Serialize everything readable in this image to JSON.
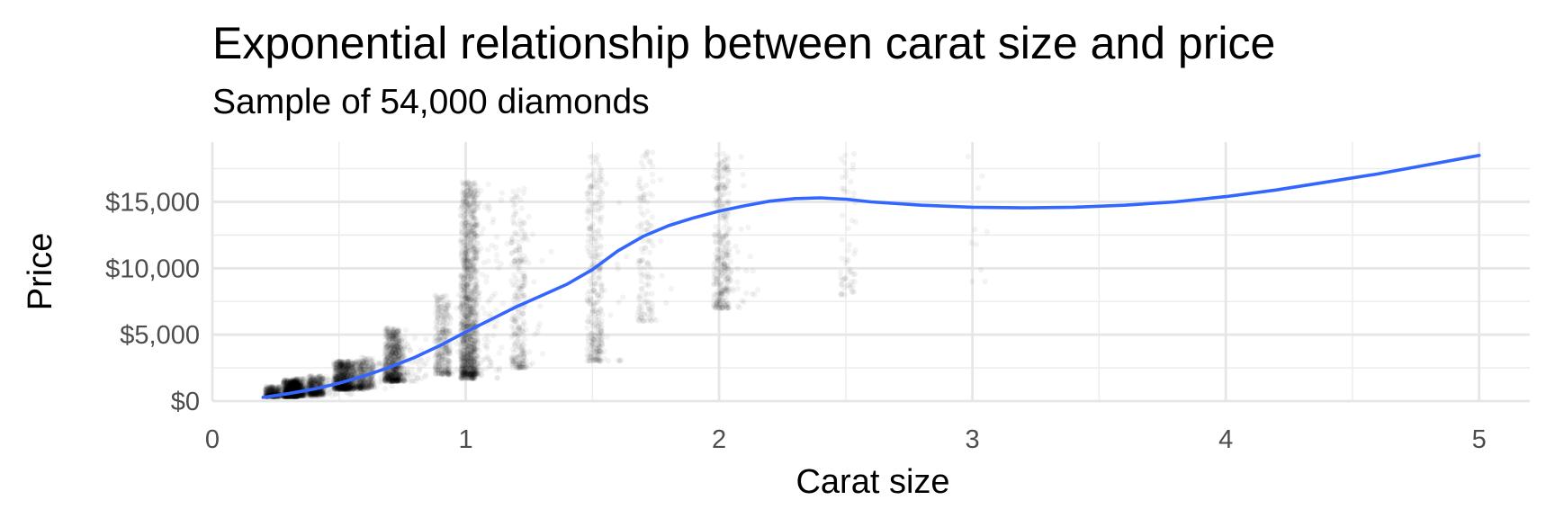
{
  "chart_data": {
    "type": "scatter",
    "title": "Exponential relationship between carat size and price",
    "subtitle": "Sample of 54,000 diamonds",
    "xlabel": "Carat size",
    "ylabel": "Price",
    "xlim": [
      0,
      5.2
    ],
    "ylim": [
      0,
      19500
    ],
    "x_ticks": [
      0,
      1,
      2,
      3,
      4,
      5
    ],
    "x_tick_labels": [
      "0",
      "1",
      "2",
      "3",
      "4",
      "5"
    ],
    "y_ticks": [
      0,
      5000,
      10000,
      15000
    ],
    "y_tick_labels": [
      "$0",
      "$5,000",
      "$10,000",
      "$15,000"
    ],
    "grid": true,
    "point_color": "#000000",
    "point_alpha": 0.03,
    "point_count": 54000,
    "clusters": [
      {
        "carat": 0.23,
        "min": 330,
        "max": 1100,
        "weight": 1.8
      },
      {
        "carat": 0.3,
        "min": 350,
        "max": 1600,
        "weight": 3.2
      },
      {
        "carat": 0.31,
        "min": 350,
        "max": 1500,
        "weight": 2.5
      },
      {
        "carat": 0.33,
        "min": 400,
        "max": 1700,
        "weight": 1.6
      },
      {
        "carat": 0.4,
        "min": 500,
        "max": 1900,
        "weight": 2.2
      },
      {
        "carat": 0.5,
        "min": 900,
        "max": 3000,
        "weight": 2.8
      },
      {
        "carat": 0.52,
        "min": 900,
        "max": 3000,
        "weight": 1.5
      },
      {
        "carat": 0.56,
        "min": 900,
        "max": 3100,
        "weight": 1.2
      },
      {
        "carat": 0.6,
        "min": 1000,
        "max": 3300,
        "weight": 1.1
      },
      {
        "carat": 0.7,
        "min": 1500,
        "max": 5500,
        "weight": 2.8
      },
      {
        "carat": 0.72,
        "min": 1500,
        "max": 5000,
        "weight": 1.3
      },
      {
        "carat": 0.9,
        "min": 2000,
        "max": 8000,
        "weight": 1.7
      },
      {
        "carat": 1.0,
        "min": 1700,
        "max": 16500,
        "weight": 3.6
      },
      {
        "carat": 1.01,
        "min": 2000,
        "max": 16500,
        "weight": 3.2
      },
      {
        "carat": 1.2,
        "min": 2500,
        "max": 16000,
        "weight": 1.4
      },
      {
        "carat": 1.5,
        "min": 3000,
        "max": 18500,
        "weight": 1.7
      },
      {
        "carat": 1.7,
        "min": 6000,
        "max": 18800,
        "weight": 0.7
      },
      {
        "carat": 2.0,
        "min": 7000,
        "max": 18800,
        "weight": 1.1
      },
      {
        "carat": 2.01,
        "min": 8000,
        "max": 18800,
        "weight": 0.6
      },
      {
        "carat": 2.5,
        "min": 8000,
        "max": 18800,
        "weight": 0.3
      },
      {
        "carat": 3.0,
        "min": 9000,
        "max": 18800,
        "weight": 0.05
      }
    ],
    "series": [
      {
        "type": "smooth",
        "color": "#3366ff",
        "x": [
          0.2,
          0.3,
          0.4,
          0.5,
          0.6,
          0.7,
          0.8,
          0.9,
          1.0,
          1.1,
          1.2,
          1.3,
          1.4,
          1.5,
          1.6,
          1.7,
          1.8,
          1.9,
          2.0,
          2.1,
          2.2,
          2.3,
          2.4,
          2.5,
          2.6,
          2.8,
          3.0,
          3.2,
          3.4,
          3.6,
          3.8,
          4.0,
          4.2,
          4.4,
          4.6,
          4.8,
          5.0
        ],
        "y": [
          280,
          560,
          900,
          1350,
          1900,
          2550,
          3300,
          4200,
          5200,
          6150,
          7100,
          7950,
          8800,
          9900,
          11300,
          12400,
          13200,
          13800,
          14300,
          14700,
          15050,
          15250,
          15300,
          15200,
          15000,
          14750,
          14600,
          14550,
          14600,
          14750,
          15000,
          15400,
          15900,
          16500,
          17100,
          17800,
          18500
        ]
      }
    ]
  }
}
